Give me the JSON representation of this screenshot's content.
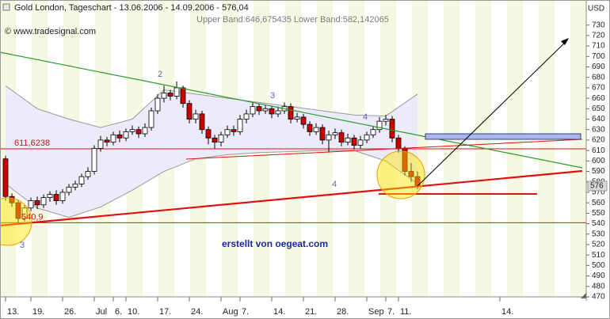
{
  "title": "Gold London, Tageschart - 13.06.2006 - 14.09.2006 - 576,04",
  "copyright": "© www.tradesignal.com",
  "indicator": "Upper Band:646,675435 Lower Band:582,142065",
  "credit": "erstellt von oegeat.com",
  "chart_data": {
    "type": "candlestick",
    "y_axis_label": "USD",
    "open": [
      602,
      566,
      560,
      545,
      555,
      562,
      558,
      565,
      568,
      562,
      570,
      575,
      578,
      585,
      590,
      612,
      620,
      618,
      625,
      622,
      628,
      630,
      626,
      632,
      648,
      660,
      665,
      662,
      670,
      655,
      640,
      645,
      630,
      622,
      618,
      625,
      630,
      628,
      640,
      645,
      652,
      648,
      650,
      645,
      648,
      652,
      640,
      642,
      635,
      628,
      632,
      620,
      625,
      627,
      618,
      622,
      615,
      620,
      625,
      630,
      638,
      640,
      622,
      612,
      590,
      585
    ],
    "high": [
      605,
      569,
      563,
      558,
      565,
      566,
      568,
      571,
      572,
      573,
      578,
      581,
      588,
      594,
      615,
      624,
      623,
      628,
      629,
      631,
      634,
      633,
      636,
      651,
      664,
      672,
      668,
      676,
      672,
      658,
      649,
      648,
      633,
      625,
      628,
      634,
      634,
      644,
      649,
      656,
      655,
      654,
      653,
      652,
      656,
      655,
      646,
      645,
      638,
      636,
      635,
      629,
      631,
      630,
      626,
      625,
      624,
      628,
      633,
      642,
      644,
      643,
      625,
      614,
      598,
      590
    ],
    "low": [
      562,
      556,
      541,
      542,
      552,
      554,
      555,
      561,
      558,
      559,
      567,
      572,
      575,
      582,
      587,
      609,
      614,
      615,
      618,
      619,
      625,
      622,
      623,
      629,
      645,
      656,
      658,
      659,
      651,
      636,
      636,
      626,
      616,
      612,
      614,
      622,
      624,
      625,
      636,
      642,
      644,
      645,
      641,
      642,
      645,
      636,
      637,
      631,
      624,
      625,
      616,
      608,
      621,
      614,
      615,
      611,
      612,
      617,
      622,
      627,
      634,
      618,
      608,
      586,
      580,
      573
    ],
    "close": [
      566,
      560,
      545,
      555,
      562,
      558,
      565,
      568,
      562,
      570,
      575,
      578,
      585,
      590,
      612,
      620,
      618,
      625,
      622,
      628,
      630,
      626,
      632,
      648,
      660,
      665,
      662,
      670,
      655,
      640,
      645,
      630,
      622,
      618,
      625,
      630,
      628,
      640,
      645,
      652,
      648,
      650,
      645,
      648,
      652,
      640,
      642,
      635,
      628,
      632,
      620,
      625,
      627,
      618,
      622,
      615,
      620,
      625,
      630,
      638,
      640,
      622,
      612,
      590,
      585,
      576
    ],
    "up_color": "#ffffff",
    "down_color": "#cc0000",
    "bands": {
      "x": [
        0,
        5,
        10,
        15,
        20,
        25,
        30,
        35,
        40,
        45,
        50,
        55,
        60,
        65
      ],
      "upper": [
        672,
        650,
        640,
        632,
        640,
        668,
        664,
        660,
        656,
        652,
        648,
        644,
        643,
        664
      ],
      "lower": [
        578,
        555,
        546,
        556,
        572,
        590,
        602,
        606,
        608,
        609,
        610,
        610,
        600,
        578
      ],
      "color": "#9a9a9a"
    },
    "levels": [
      {
        "value": 611.6238,
        "label": "611,6238"
      },
      {
        "value": 540.9,
        "label": "540,9"
      }
    ],
    "annotations": [
      "2",
      "3",
      "4",
      "4",
      "3"
    ],
    "last_price": {
      "value": 576.04,
      "label": "576"
    },
    "xlim": [
      -0.875,
      91.625
    ],
    "xticks": [
      {
        "value": 0,
        "label": "13."
      },
      {
        "value": 4,
        "label": "19."
      },
      {
        "value": 9,
        "label": "26."
      },
      {
        "value": 14,
        "label": "Jul"
      },
      {
        "value": 17,
        "label": "6."
      },
      {
        "value": 19,
        "label": "10."
      },
      {
        "value": 24,
        "label": "17."
      },
      {
        "value": 29,
        "label": "24."
      },
      {
        "value": 34,
        "label": "Aug"
      },
      {
        "value": 37,
        "label": "7."
      },
      {
        "value": 42,
        "label": "14."
      },
      {
        "value": 47,
        "label": "21."
      },
      {
        "value": 52,
        "label": "28."
      },
      {
        "value": 57,
        "label": "Sep"
      },
      {
        "value": 60,
        "label": "7."
      },
      {
        "value": 62,
        "label": "11."
      },
      {
        "value": 78,
        "label": "14."
      }
    ],
    "ylim": [
      470,
      754
    ],
    "yticks": [
      470,
      480,
      490,
      500,
      510,
      520,
      530,
      540,
      550,
      560,
      570,
      580,
      590,
      600,
      610,
      620,
      630,
      640,
      650,
      660,
      670,
      680,
      690,
      700,
      710,
      720,
      730
    ]
  }
}
